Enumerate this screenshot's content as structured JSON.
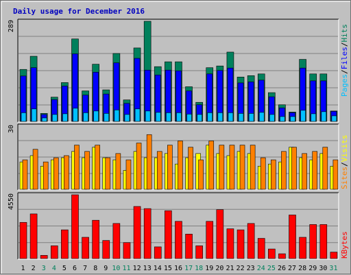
{
  "title": "Daily usage for December 2016",
  "colors": {
    "background": "#c0c0c0",
    "panel": "#c0c0c0",
    "grid": "#808080",
    "title": "#0000c0",
    "hits": "#00805c",
    "files": "#0000ff",
    "pages": "#00c0ff",
    "visits": "#ffff00",
    "sites": "#ff8000",
    "kbytes": "#ff0000",
    "weekday_label": "#000000",
    "weekend_label": "#00805c",
    "bar_edge": "#000000"
  },
  "legend_top": {
    "pages": "Pages",
    "sep1": "/",
    "files": "Files",
    "sep2": "/",
    "hits": "Hits"
  },
  "legend_middle": {
    "sites": "Sites",
    "sep": "/",
    "visits": "Visits"
  },
  "legend_bottom": {
    "kbytes": "KBytes"
  },
  "chart_data": {
    "type": "bar",
    "days": [
      "1",
      "2",
      "3",
      "4",
      "5",
      "6",
      "7",
      "8",
      "9",
      "10",
      "11",
      "12",
      "13",
      "14",
      "15",
      "16",
      "17",
      "18",
      "19",
      "20",
      "21",
      "22",
      "23",
      "24",
      "25",
      "26",
      "27",
      "28",
      "29",
      "30",
      "31"
    ],
    "weekend_days": [
      "3",
      "4",
      "10",
      "11",
      "17",
      "18",
      "24",
      "25",
      "31"
    ],
    "panels": [
      {
        "name": "hits-files-pages",
        "ymax_label": "289",
        "ymax": 289,
        "series": [
          {
            "name": "Hits",
            "values": [
              150,
              188,
              23,
              70,
              112,
              238,
              88,
              165,
              91,
              196,
              62,
              212,
              289,
              158,
              172,
              172,
              100,
              55,
              155,
              160,
              200,
              128,
              132,
              137,
              83,
              48,
              27,
              179,
              137,
              137,
              30
            ]
          },
          {
            "name": "Files",
            "values": [
              131,
              155,
              20,
              63,
              102,
              195,
              76,
              142,
              79,
              169,
              52,
              182,
              148,
              134,
              148,
              146,
              88,
              48,
              137,
              147,
              154,
              111,
              114,
              119,
              71,
              39,
              25,
              154,
              117,
              117,
              29
            ]
          },
          {
            "name": "Pages",
            "values": [
              25,
              36,
              10,
              20,
              22,
              38,
              25,
              30,
              23,
              33,
              20,
              36,
              30,
              26,
              25,
              25,
              21,
              20,
              25,
              25,
              25,
              23,
              23,
              26,
              20,
              14,
              14,
              32,
              22,
              28,
              16
            ]
          }
        ]
      },
      {
        "name": "visits-sites",
        "ymax_label": "30",
        "ymax": 30,
        "series": [
          {
            "name": "Visits",
            "values": [
              13,
              16,
              11,
              14,
              15,
              18,
              15,
              20,
              15,
              14,
              9,
              18,
              15,
              15,
              17,
              12,
              15,
              17,
              21,
              17,
              16,
              18,
              17,
              11,
              12,
              13,
              20,
              15,
              14,
              17,
              11
            ]
          },
          {
            "name": "Sites",
            "values": [
              14,
              19,
              13,
              15,
              16,
              21,
              18,
              21,
              15,
              17,
              14,
              22,
              26,
              18,
              21,
              23,
              20,
              14,
              23,
              21,
              21,
              21,
              21,
              15,
              14,
              18,
              20,
              17,
              18,
              20,
              14
            ]
          }
        ]
      },
      {
        "name": "kbytes",
        "ymax_label": "4550",
        "ymax": 4550,
        "series": [
          {
            "name": "KBytes",
            "values": [
              2580,
              3185,
              227,
              910,
              2048,
              4550,
              1517,
              2731,
              1290,
              2503,
              1138,
              3717,
              3565,
              835,
              3413,
              2655,
              1745,
              910,
              2655,
              3489,
              2124,
              2048,
              2503,
              1441,
              682,
              341,
              3109,
              1517,
              2427,
              2427,
              460
            ]
          }
        ]
      }
    ]
  }
}
